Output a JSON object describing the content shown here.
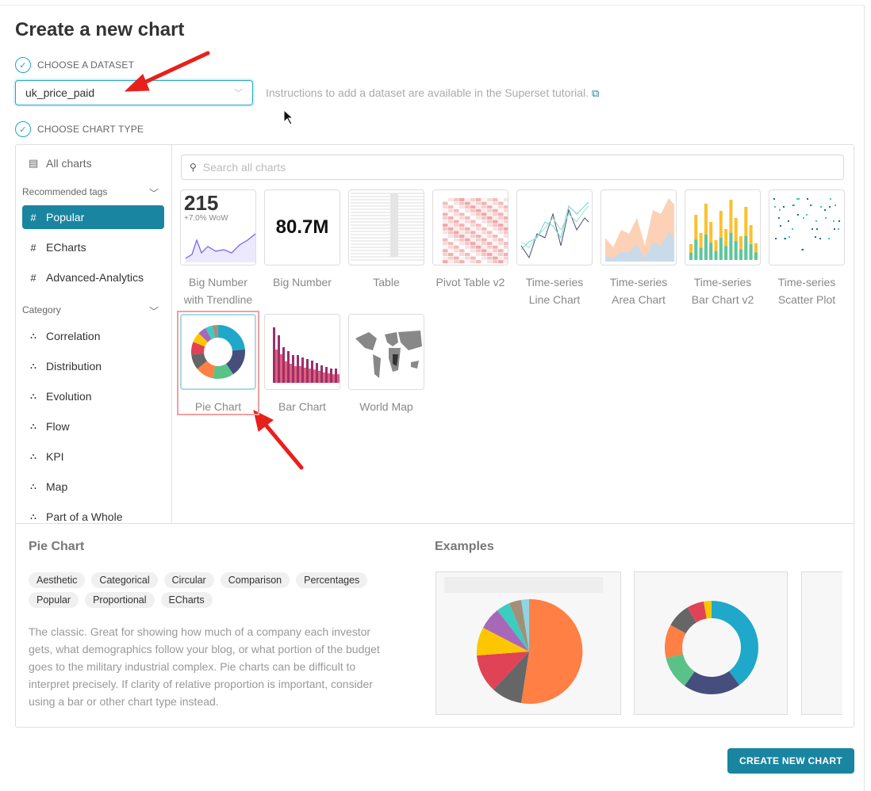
{
  "title": "Create a new chart",
  "dataset_step": {
    "label": "CHOOSE A DATASET",
    "value": "uk_price_paid",
    "hint": "Instructions to add a dataset are available in the Superset tutorial."
  },
  "chart_type_step": {
    "label": "CHOOSE CHART TYPE"
  },
  "sidebar": {
    "all_charts": "All charts",
    "recommended_header": "Recommended tags",
    "tags": [
      {
        "label": "Popular",
        "active": true
      },
      {
        "label": "ECharts"
      },
      {
        "label": "Advanced-Analytics"
      }
    ],
    "category_header": "Category",
    "categories": [
      "Correlation",
      "Distribution",
      "Evolution",
      "Flow",
      "KPI",
      "Map",
      "Part of a Whole"
    ]
  },
  "search": {
    "placeholder": "Search all charts"
  },
  "charts": [
    {
      "label": "Big Number with Trendline",
      "thumb_value": "215",
      "thumb_sub": "+7.0% WoW"
    },
    {
      "label": "Big Number",
      "thumb_value": "80.7M"
    },
    {
      "label": "Table"
    },
    {
      "label": "Pivot Table v2"
    },
    {
      "label": "Time-series Line Chart"
    },
    {
      "label": "Time-series Area Chart"
    },
    {
      "label": "Time-series Bar Chart v2"
    },
    {
      "label": "Time-series Scatter Plot"
    },
    {
      "label": "Pie Chart",
      "selected": true
    },
    {
      "label": "Bar Chart"
    },
    {
      "label": "World Map"
    }
  ],
  "details": {
    "title": "Pie Chart",
    "tags": [
      "Aesthetic",
      "Categorical",
      "Circular",
      "Comparison",
      "Percentages",
      "Popular",
      "Proportional",
      "ECharts"
    ],
    "description": "The classic. Great for showing how much of a company each investor gets, what demographics follow your blog, or what portion of the budget goes to the military industrial complex. Pie charts can be difficult to interpret precisely. If clarity of relative proportion is important, consider using a bar or other chart type instead.",
    "examples_title": "Examples"
  },
  "create_button": "CREATE NEW CHART",
  "colors": {
    "accent": "#1a85a0",
    "check": "#20a7c9",
    "annotation": "#e8201c"
  }
}
